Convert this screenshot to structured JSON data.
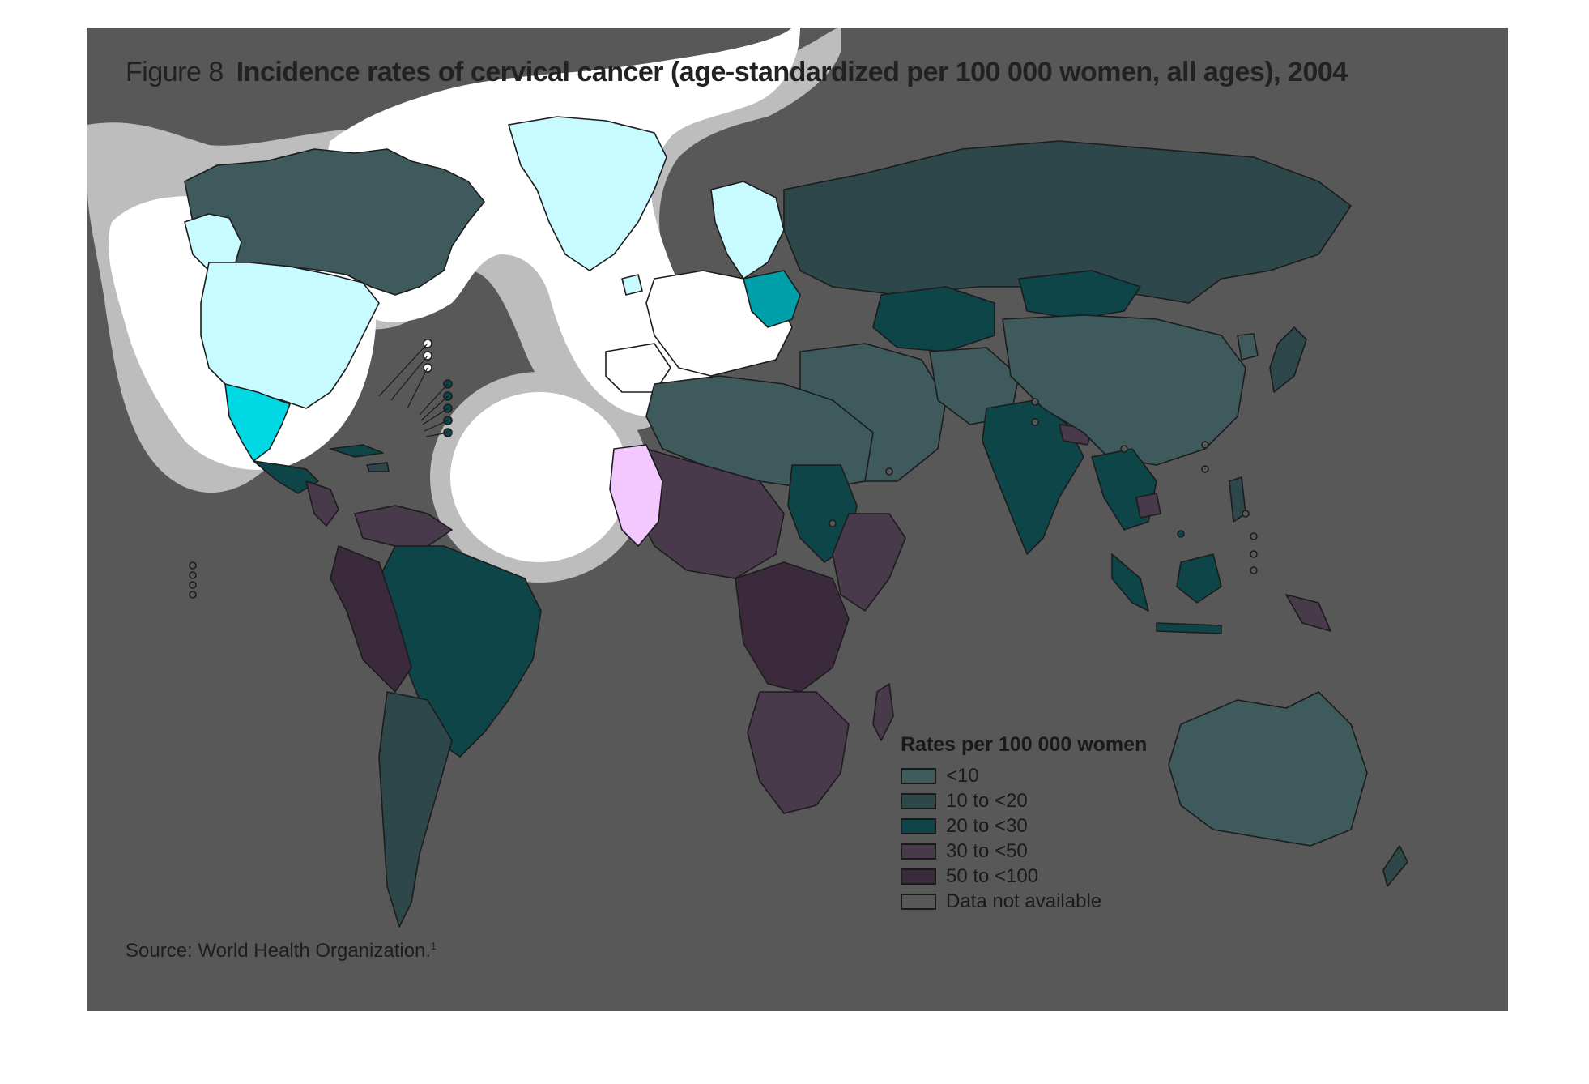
{
  "figure": {
    "label": "Figure 8",
    "title": "Incidence rates of cervical cancer (age-standardized per 100 000 women, all ages), 2004",
    "source": "Source: World Health Organization.",
    "source_ref": "1"
  },
  "legend": {
    "title": "Rates per 100 000 women",
    "items": [
      {
        "label": "<10",
        "color": "#3f5a5d"
      },
      {
        "label": "10 to <20",
        "color": "#2e474a"
      },
      {
        "label": "20 to <30",
        "color": "#0d4548"
      },
      {
        "label": "30 to <50",
        "color": "#48394b"
      },
      {
        "label": "50 to <100",
        "color": "#3b2a3c"
      },
      {
        "label": "Data not available",
        "color": "#585858"
      }
    ]
  },
  "colors": {
    "background": "#585858",
    "highlight_white": "#ffffff",
    "highlight_halo": "#bdbdbd",
    "highlight_cyan": "#c8fbff",
    "highlight_teal": "#00b8c4",
    "highlight_pink": "#f2c8ff"
  }
}
